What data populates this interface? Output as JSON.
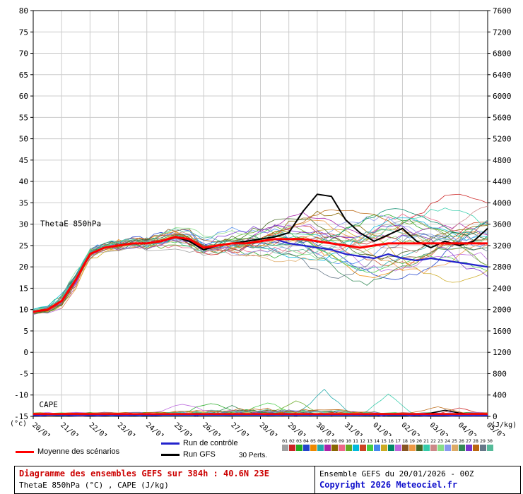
{
  "chart_data": {
    "type": "line",
    "title_label": "ThetaE 850hPa",
    "cape_label": "CAPE",
    "left_axis": {
      "min": -15,
      "max": 80,
      "step": 5,
      "unit": "(°c)"
    },
    "right_axis": {
      "min": 0,
      "max": 7600,
      "step": 400,
      "unit": "(J/kg)"
    },
    "x_labels": [
      "20/01",
      "21/01",
      "22/01",
      "23/01",
      "24/01",
      "25/01",
      "26/01",
      "27/01",
      "28/01",
      "29/01",
      "30/01",
      "31/01",
      "01/02",
      "02/02",
      "03/02",
      "04/02",
      "05/02"
    ],
    "total_hours": 384,
    "hours_step": 12,
    "members": 30,
    "thetae": {
      "mean": [
        9.5,
        10,
        12,
        17,
        23,
        24.5,
        25,
        25.5,
        25.5,
        26,
        27,
        26.5,
        24.5,
        25,
        25.5,
        25.5,
        26,
        26.5,
        26.5,
        26.5,
        26,
        25.5,
        25,
        24.5,
        25,
        25.5,
        25.5,
        25.5,
        25.5,
        25.5,
        25.5,
        25.5,
        25.5
      ],
      "control": [
        9.5,
        10,
        12,
        17,
        23,
        24.5,
        25,
        25.5,
        25.5,
        26,
        27,
        26.5,
        24.5,
        25,
        25.5,
        25.5,
        26,
        26.5,
        25.5,
        25,
        24.5,
        24,
        23,
        22.5,
        22,
        23,
        22,
        21.5,
        22,
        21.5,
        21,
        20.5,
        20
      ],
      "gfs": [
        9.5,
        10,
        12,
        17,
        23,
        24.5,
        25,
        25.5,
        25.5,
        26,
        27,
        26,
        24,
        25,
        25.5,
        26,
        26.5,
        27,
        28,
        33,
        37,
        36.5,
        31,
        28,
        26,
        27.5,
        29,
        26,
        24.5,
        26,
        25,
        26,
        29
      ],
      "spread": [
        0.6,
        0.8,
        1.5,
        2,
        1.5,
        1.3,
        1.2,
        1.3,
        1.5,
        1.8,
        2.5,
        3,
        3.2,
        3.5,
        3.8,
        4.2,
        4.6,
        5,
        5.5,
        6,
        6.8,
        7.5,
        8,
        8.2,
        8.5,
        8.8,
        9,
        9.2,
        9.5,
        9.8,
        10,
        10,
        10
      ]
    },
    "cape": {
      "mean": 45,
      "control": 25,
      "gfs": 35,
      "gfs_bump": {
        "hour": 348,
        "value": 80
      },
      "spikes": [
        {
          "member": 6,
          "hour": 246,
          "value": 430
        },
        {
          "member": 21,
          "hour": 300,
          "value": 390
        },
        {
          "member": 3,
          "hour": 150,
          "value": 180
        },
        {
          "member": 13,
          "hour": 198,
          "value": 200
        },
        {
          "member": 26,
          "hour": 168,
          "value": 160
        },
        {
          "member": 10,
          "hour": 222,
          "value": 220
        },
        {
          "member": 17,
          "hour": 126,
          "value": 150
        },
        {
          "member": 28,
          "hour": 342,
          "value": 120
        },
        {
          "member": 2,
          "hour": 360,
          "value": 140
        }
      ]
    },
    "member_colors": [
      "#a0a0a0",
      "#cc2222",
      "#22aa22",
      "#2244cc",
      "#ee8800",
      "#22aaaa",
      "#aa22aa",
      "#886600",
      "#ee6688",
      "#66aa22",
      "#00bbdd",
      "#cc4422",
      "#44cc44",
      "#4488ee",
      "#ccaa22",
      "#008866",
      "#bb66dd",
      "#885522",
      "#ee9944",
      "#446622",
      "#33ccaa",
      "#cc8888",
      "#88dd88",
      "#8899ee",
      "#ddaa66",
      "#338855",
      "#7733cc",
      "#bb6611",
      "#667788",
      "#55bb99"
    ]
  },
  "legend": {
    "mean_label": "Moyenne des scénarios",
    "control_label": "Run de contrôle",
    "gfs_label": "Run GFS",
    "perts_label": "30 Perts.",
    "pert_numbers": [
      "01",
      "02",
      "03",
      "04",
      "05",
      "06",
      "07",
      "08",
      "09",
      "10",
      "11",
      "12",
      "13",
      "14",
      "15",
      "16",
      "17",
      "18",
      "19",
      "20",
      "21",
      "22",
      "23",
      "24",
      "25",
      "26",
      "27",
      "28",
      "29",
      "30"
    ]
  },
  "footer": {
    "left_line1": "Diagramme des ensembles GEFS sur 384h : 40.6N 23E",
    "left_line2": "ThetaE 850hPa (°C) , CAPE (J/kg)",
    "right_line1": "Ensemble GEFS du 20/01/2026 - 00Z",
    "right_line2": "Copyright 2026 Meteociel.fr"
  },
  "colors": {
    "mean": "#ff0000",
    "control": "#2222cc",
    "gfs": "#000000",
    "grid": "#cccccc",
    "axis": "#000000",
    "title_red": "#cc0000",
    "copyright_blue": "#1111cc"
  }
}
